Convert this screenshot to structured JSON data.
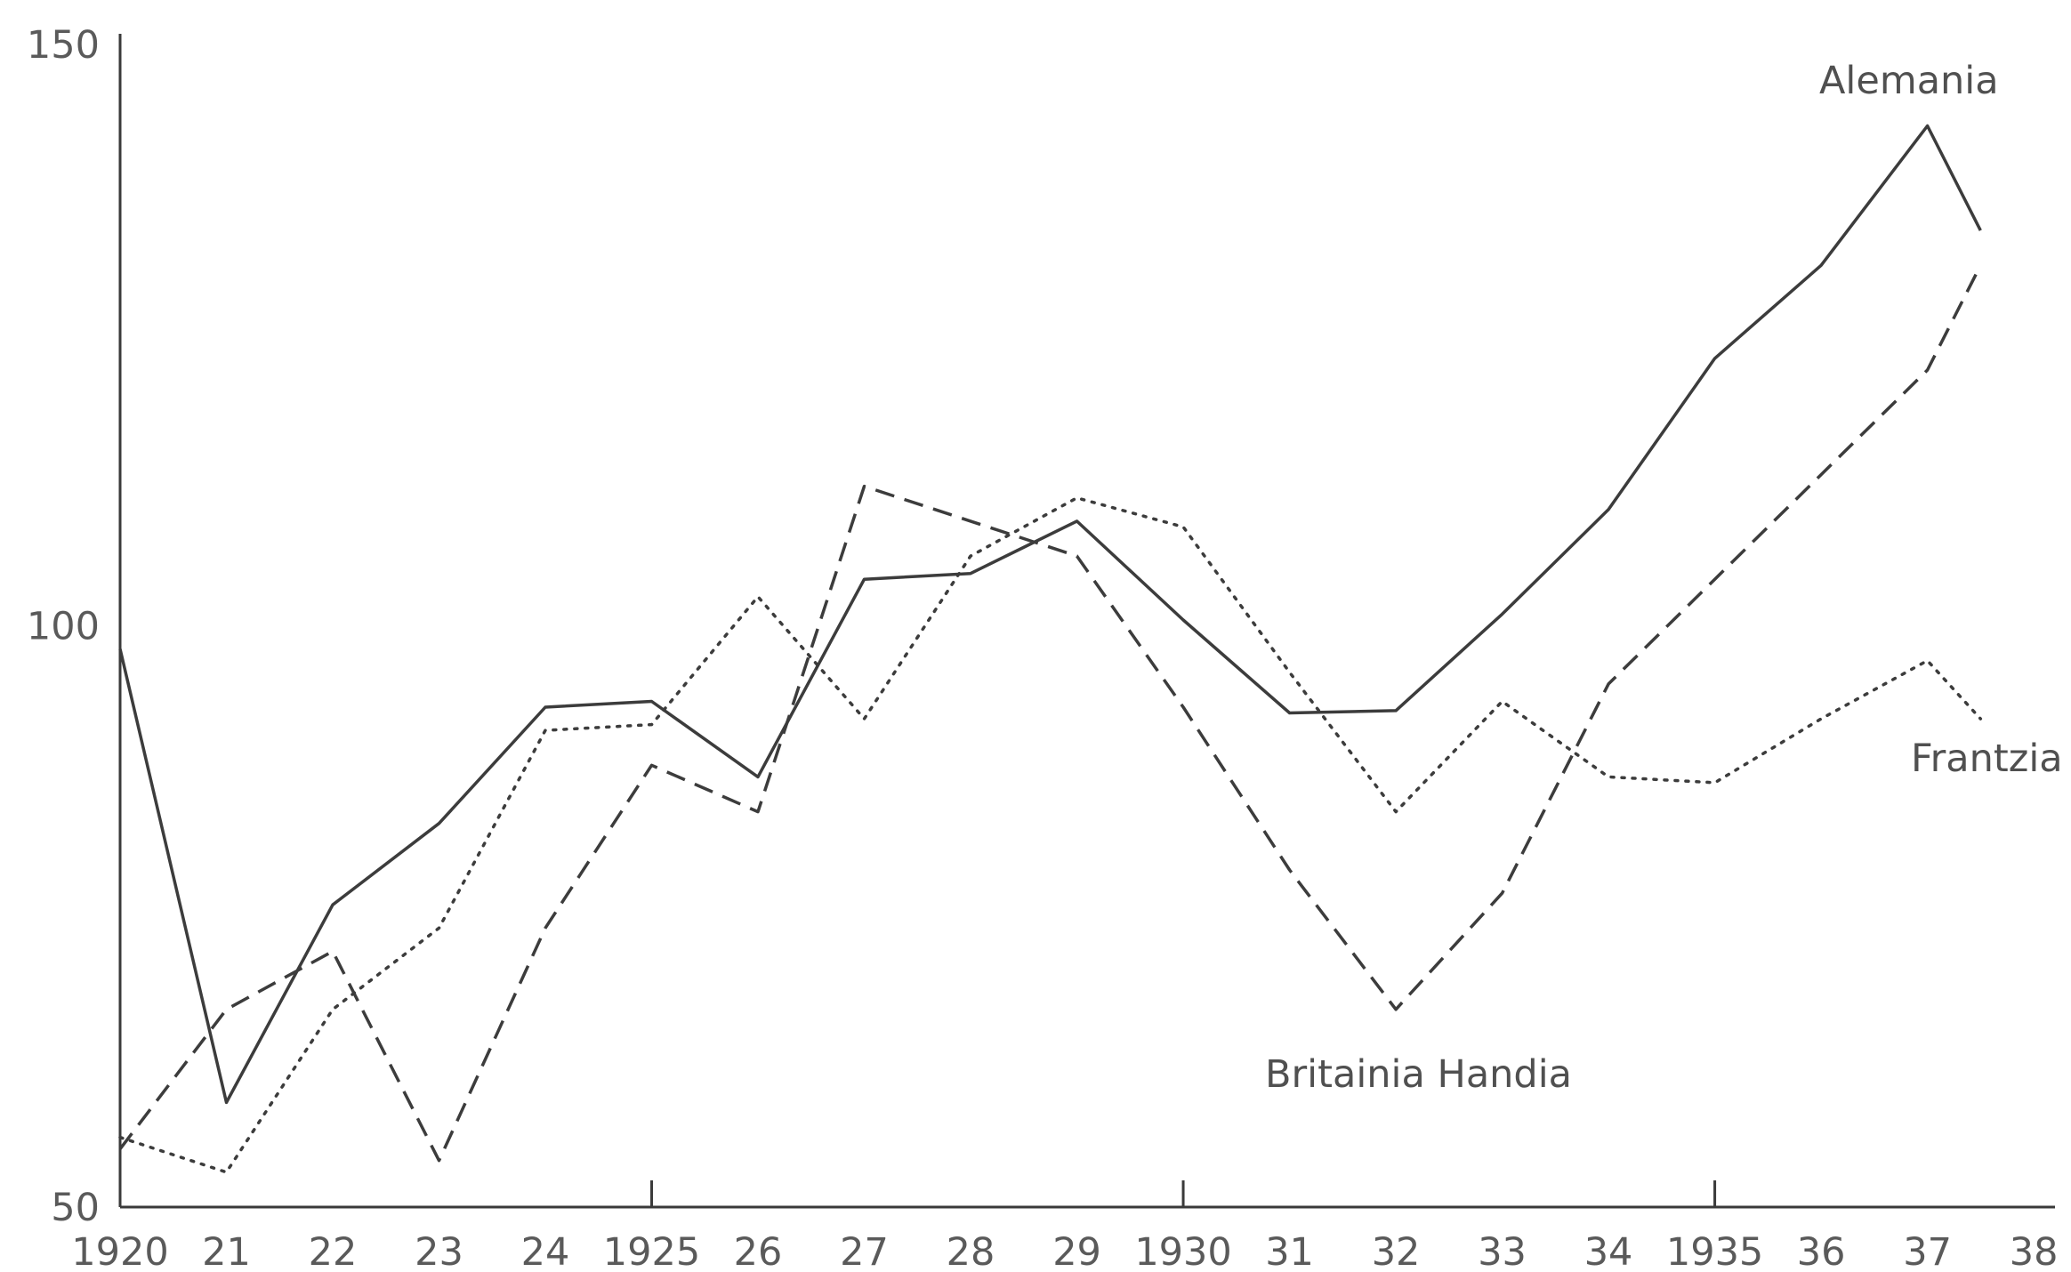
{
  "chart_data": {
    "type": "line",
    "categories": [
      "1920",
      "21",
      "22",
      "23",
      "24",
      "1925",
      "26",
      "27",
      "28",
      "29",
      "1930",
      "31",
      "32",
      "33",
      "34",
      "1935",
      "36",
      "37",
      "38"
    ],
    "x": [
      1920,
      1921,
      1922,
      1923,
      1924,
      1925,
      1926,
      1927,
      1928,
      1929,
      1930,
      1931,
      1932,
      1933,
      1934,
      1935,
      1936,
      1937,
      1938
    ],
    "xlim": [
      1920,
      1938.2
    ],
    "ylim": [
      50,
      150
    ],
    "yticks": [
      50,
      100,
      150
    ],
    "xticks_major": [
      1925,
      1930,
      1935
    ],
    "series": [
      {
        "name": "Alemania",
        "style": "solid",
        "color": "#3c3c3c",
        "x": [
          1920,
          1921,
          1922,
          1923,
          1924,
          1925,
          1926,
          1927,
          1928,
          1929,
          1930,
          1931,
          1932,
          1933,
          1934,
          1935,
          1936,
          1937,
          1937.5
        ],
        "values": [
          98,
          59,
          76,
          83,
          93,
          93.5,
          87,
          104,
          104.5,
          109,
          100.5,
          92.5,
          92.7,
          101,
          110,
          123,
          131,
          143,
          134
        ]
      },
      {
        "name": "Britainia Handia",
        "style": "dashed",
        "color": "#3c3c3c",
        "x": [
          1920,
          1921,
          1922,
          1923,
          1924,
          1925,
          1926,
          1927,
          1928,
          1929,
          1930,
          1931,
          1932,
          1933,
          1934,
          1935,
          1936,
          1937,
          1937.5
        ],
        "values": [
          55,
          67,
          72,
          54,
          74,
          88,
          84,
          112,
          109,
          106,
          93,
          79,
          67,
          77,
          95,
          104,
          113,
          122,
          131
        ]
      },
      {
        "name": "Frantzia",
        "style": "dotted",
        "color": "#6a6a6a",
        "x": [
          1920,
          1921,
          1922,
          1923,
          1924,
          1925,
          1926,
          1927,
          1928,
          1929,
          1930,
          1931,
          1932,
          1933,
          1934,
          1935,
          1936,
          1937,
          1937.5
        ],
        "values": [
          56,
          53,
          67,
          74,
          91,
          91.5,
          102.5,
          92,
          106,
          111,
          108.5,
          96,
          84,
          93.5,
          87,
          86.5,
          92,
          97,
          92
        ]
      }
    ]
  }
}
